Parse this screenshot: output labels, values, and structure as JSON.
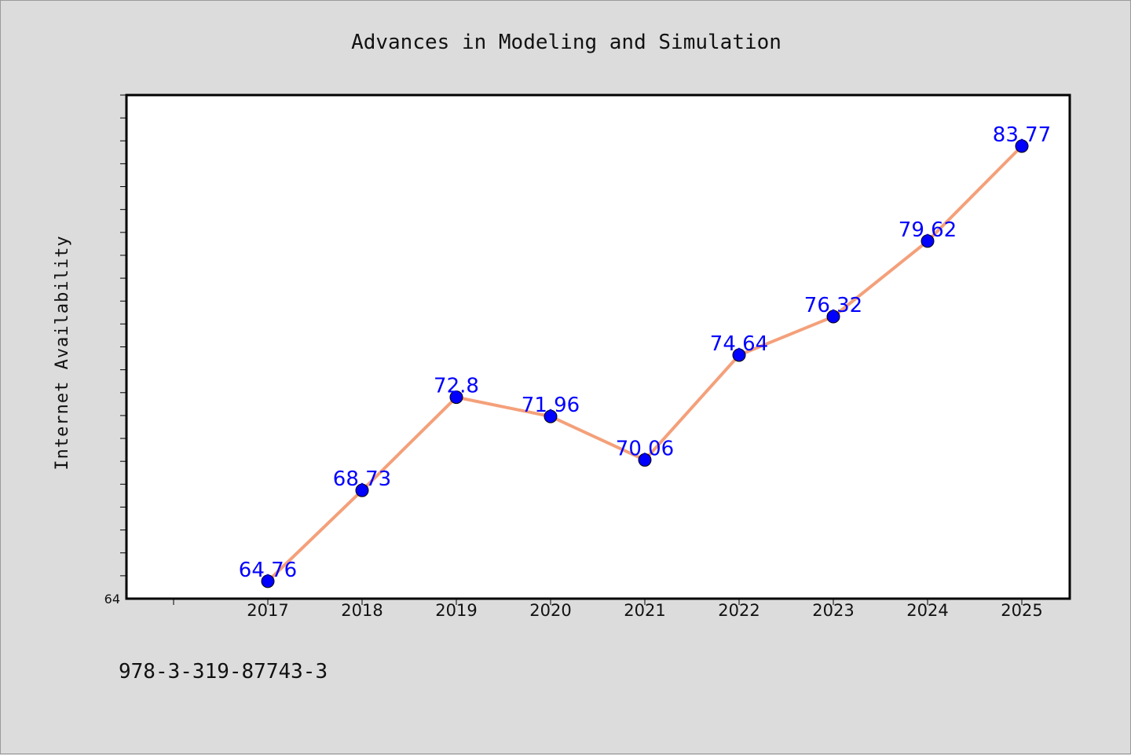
{
  "chart_data": {
    "type": "line",
    "title": "Advances in Modeling and Simulation",
    "xlabel": "",
    "ylabel": "Internet Availability",
    "categories": [
      "2017",
      "2018",
      "2019",
      "2020",
      "2021",
      "2022",
      "2023",
      "2024",
      "2025"
    ],
    "series": [
      {
        "values": [
          64.76,
          68.73,
          72.8,
          71.96,
          70.06,
          74.64,
          76.32,
          79.62,
          83.77
        ],
        "labels": [
          "64.76",
          "68.73",
          "72.8",
          "71.96",
          "70.06",
          "74.64",
          "76.32",
          "79.62",
          "83.77"
        ]
      }
    ],
    "ylim": [
      64,
      86
    ],
    "yticks_labeled": [
      "64"
    ],
    "grid": false,
    "legend": "none",
    "colors": {
      "line": "#f4a07a",
      "marker": "#0000ff",
      "label": "#0000ff",
      "background": "#dcdcdc",
      "plot_bg": "#ffffff"
    }
  },
  "footer": {
    "isbn": "978-3-319-87743-3"
  }
}
